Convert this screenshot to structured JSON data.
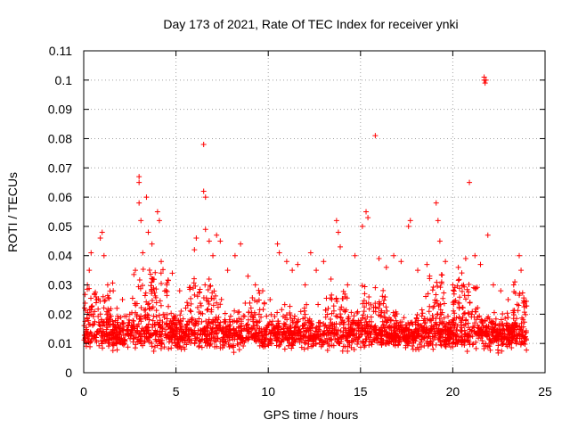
{
  "chart_data": {
    "type": "scatter",
    "title": "Day 173 of 2021, Rate Of TEC Index for receiver ynki",
    "xlabel": "GPS time / hours",
    "ylabel": "ROTI / TECUs",
    "xlim": [
      0,
      25
    ],
    "ylim": [
      0,
      0.11
    ],
    "x_ticks": [
      0,
      5,
      10,
      15,
      20,
      25
    ],
    "x_tick_labels": [
      "0",
      "5",
      "10",
      "15",
      "20",
      "25"
    ],
    "y_ticks": [
      0,
      0.01,
      0.02,
      0.03,
      0.04,
      0.05,
      0.06,
      0.07,
      0.08,
      0.09,
      0.1,
      0.11
    ],
    "y_tick_labels": [
      "0",
      "0.01",
      "0.02",
      "0.03",
      "0.04",
      "0.05",
      "0.06",
      "0.07",
      "0.08",
      "0.09",
      "0.1",
      "0.11"
    ],
    "grid": true,
    "marker": "+",
    "color": "#ff0000",
    "series": [
      {
        "name": "ROTI",
        "points": [
          [
            0.1,
            0.012
          ],
          [
            0.2,
            0.03
          ],
          [
            0.3,
            0.035
          ],
          [
            0.4,
            0.041
          ],
          [
            0.5,
            0.02
          ],
          [
            0.7,
            0.025
          ],
          [
            0.9,
            0.046
          ],
          [
            1.0,
            0.048
          ],
          [
            1.1,
            0.04
          ],
          [
            1.3,
            0.03
          ],
          [
            1.6,
            0.028
          ],
          [
            1.8,
            0.022
          ],
          [
            2.1,
            0.025
          ],
          [
            2.5,
            0.02
          ],
          [
            2.8,
            0.035
          ],
          [
            3.0,
            0.067
          ],
          [
            3.0,
            0.065
          ],
          [
            3.0,
            0.058
          ],
          [
            3.1,
            0.052
          ],
          [
            3.2,
            0.041
          ],
          [
            3.4,
            0.06
          ],
          [
            3.5,
            0.048
          ],
          [
            3.7,
            0.044
          ],
          [
            4.0,
            0.055
          ],
          [
            4.1,
            0.052
          ],
          [
            4.2,
            0.038
          ],
          [
            4.5,
            0.03
          ],
          [
            4.8,
            0.034
          ],
          [
            5.2,
            0.028
          ],
          [
            5.6,
            0.024
          ],
          [
            6.0,
            0.042
          ],
          [
            6.1,
            0.046
          ],
          [
            6.5,
            0.078
          ],
          [
            6.5,
            0.062
          ],
          [
            6.6,
            0.06
          ],
          [
            6.6,
            0.049
          ],
          [
            6.8,
            0.045
          ],
          [
            7.0,
            0.04
          ],
          [
            7.2,
            0.047
          ],
          [
            7.4,
            0.045
          ],
          [
            7.8,
            0.035
          ],
          [
            8.2,
            0.04
          ],
          [
            8.5,
            0.044
          ],
          [
            8.9,
            0.033
          ],
          [
            9.3,
            0.03
          ],
          [
            9.7,
            0.028
          ],
          [
            10.1,
            0.025
          ],
          [
            10.5,
            0.044
          ],
          [
            10.6,
            0.041
          ],
          [
            11.0,
            0.038
          ],
          [
            11.3,
            0.035
          ],
          [
            11.6,
            0.037
          ],
          [
            12.0,
            0.03
          ],
          [
            12.3,
            0.041
          ],
          [
            12.6,
            0.035
          ],
          [
            13.0,
            0.038
          ],
          [
            13.4,
            0.032
          ],
          [
            13.7,
            0.052
          ],
          [
            13.8,
            0.048
          ],
          [
            13.9,
            0.043
          ],
          [
            14.3,
            0.03
          ],
          [
            14.7,
            0.04
          ],
          [
            15.1,
            0.05
          ],
          [
            15.3,
            0.055
          ],
          [
            15.4,
            0.053
          ],
          [
            15.8,
            0.081
          ],
          [
            16.0,
            0.039
          ],
          [
            16.4,
            0.036
          ],
          [
            16.8,
            0.04
          ],
          [
            17.2,
            0.038
          ],
          [
            17.6,
            0.05
          ],
          [
            17.7,
            0.052
          ],
          [
            18.1,
            0.035
          ],
          [
            18.6,
            0.037
          ],
          [
            19.1,
            0.058
          ],
          [
            19.2,
            0.052
          ],
          [
            19.3,
            0.045
          ],
          [
            19.6,
            0.038
          ],
          [
            20.0,
            0.03
          ],
          [
            20.3,
            0.036
          ],
          [
            20.7,
            0.039
          ],
          [
            20.9,
            0.065
          ],
          [
            21.2,
            0.04
          ],
          [
            21.5,
            0.037
          ],
          [
            21.7,
            0.101
          ],
          [
            21.7,
            0.1
          ],
          [
            21.8,
            0.1
          ],
          [
            21.75,
            0.099
          ],
          [
            21.9,
            0.047
          ],
          [
            22.2,
            0.03
          ],
          [
            22.6,
            0.028
          ],
          [
            23.0,
            0.025
          ],
          [
            23.3,
            0.03
          ],
          [
            23.6,
            0.04
          ],
          [
            23.7,
            0.035
          ],
          [
            23.9,
            0.012
          ]
        ]
      }
    ],
    "dense_band": {
      "x_range": [
        0,
        24
      ],
      "mean_level": 0.012,
      "floor_level": 0.003
    }
  }
}
